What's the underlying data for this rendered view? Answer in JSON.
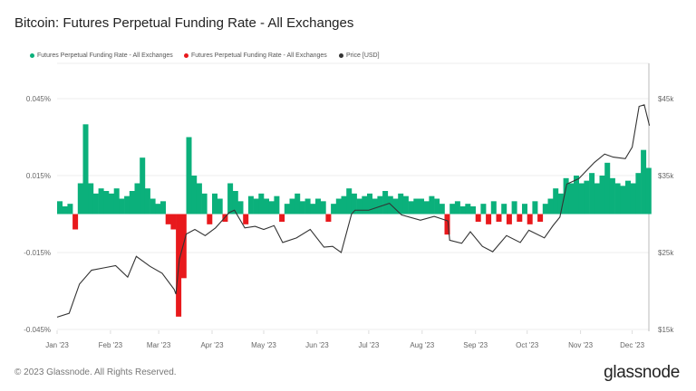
{
  "title": "Bitcoin: Futures Perpetual Funding Rate - All Exchanges",
  "footer": "© 2023 Glassnode. All Rights Reserved.",
  "logo": "glassnode",
  "chart_data": {
    "type": "bar",
    "title": "Bitcoin: Futures Perpetual Funding Rate - All Exchanges",
    "legend_placement": "top",
    "legend": [
      {
        "name": "Futures Perpetual Funding Rate - All Exchanges",
        "color": "#0bb07b"
      },
      {
        "name": "Futures Perpetual Funding Rate - All Exchanges",
        "color": "#e8191c"
      },
      {
        "name": "Price [USD]",
        "color": "#333333"
      }
    ],
    "x_ticks": [
      "Jan '23",
      "Feb '23",
      "Mar '23",
      "Apr '23",
      "May '23",
      "Jun '23",
      "Jul '23",
      "Aug '23",
      "Sep '23",
      "Oct '23",
      "Nov '23",
      "Dec '23"
    ],
    "x_range": [
      "2023-01-01",
      "2023-12-11"
    ],
    "y_left": {
      "ticks": [
        "0.045%",
        "0.015%",
        "-0.015%",
        "-0.045%"
      ],
      "range": [
        -0.045,
        0.045
      ],
      "unit": "%"
    },
    "y_right": {
      "ticks": [
        "$45k",
        "$35k",
        "$25k",
        "$15k"
      ],
      "range": [
        15000,
        45000
      ],
      "scale": "linear"
    },
    "grid": true,
    "funding_rate": [
      [
        "2023-01-01",
        0.005
      ],
      [
        "2023-01-04",
        0.003
      ],
      [
        "2023-01-07",
        0.004
      ],
      [
        "2023-01-10",
        -0.006
      ],
      [
        "2023-01-13",
        0.012
      ],
      [
        "2023-01-16",
        0.035
      ],
      [
        "2023-01-19",
        0.012
      ],
      [
        "2023-01-22",
        0.008
      ],
      [
        "2023-01-25",
        0.01
      ],
      [
        "2023-01-28",
        0.009
      ],
      [
        "2023-01-31",
        0.008
      ],
      [
        "2023-02-03",
        0.01
      ],
      [
        "2023-02-06",
        0.006
      ],
      [
        "2023-02-09",
        0.007
      ],
      [
        "2023-02-12",
        0.009
      ],
      [
        "2023-02-15",
        0.012
      ],
      [
        "2023-02-18",
        0.022
      ],
      [
        "2023-02-21",
        0.01
      ],
      [
        "2023-02-24",
        0.006
      ],
      [
        "2023-02-27",
        0.004
      ],
      [
        "2023-03-02",
        0.005
      ],
      [
        "2023-03-05",
        -0.004
      ],
      [
        "2023-03-08",
        -0.006
      ],
      [
        "2023-03-11",
        -0.04
      ],
      [
        "2023-03-14",
        -0.025
      ],
      [
        "2023-03-17",
        0.03
      ],
      [
        "2023-03-20",
        0.015
      ],
      [
        "2023-03-23",
        0.012
      ],
      [
        "2023-03-26",
        0.008
      ],
      [
        "2023-03-29",
        -0.004
      ],
      [
        "2023-04-01",
        0.008
      ],
      [
        "2023-04-04",
        0.006
      ],
      [
        "2023-04-07",
        -0.003
      ],
      [
        "2023-04-10",
        0.012
      ],
      [
        "2023-04-13",
        0.009
      ],
      [
        "2023-04-16",
        0.005
      ],
      [
        "2023-04-19",
        -0.004
      ],
      [
        "2023-04-22",
        0.007
      ],
      [
        "2023-04-25",
        0.006
      ],
      [
        "2023-04-28",
        0.008
      ],
      [
        "2023-05-01",
        0.006
      ],
      [
        "2023-05-04",
        0.005
      ],
      [
        "2023-05-07",
        0.007
      ],
      [
        "2023-05-10",
        -0.003
      ],
      [
        "2023-05-13",
        0.004
      ],
      [
        "2023-05-16",
        0.006
      ],
      [
        "2023-05-19",
        0.008
      ],
      [
        "2023-05-22",
        0.005
      ],
      [
        "2023-05-25",
        0.006
      ],
      [
        "2023-05-28",
        0.004
      ],
      [
        "2023-05-31",
        0.006
      ],
      [
        "2023-06-03",
        0.005
      ],
      [
        "2023-06-06",
        -0.003
      ],
      [
        "2023-06-09",
        0.004
      ],
      [
        "2023-06-12",
        0.006
      ],
      [
        "2023-06-15",
        0.007
      ],
      [
        "2023-06-18",
        0.01
      ],
      [
        "2023-06-21",
        0.008
      ],
      [
        "2023-06-24",
        0.006
      ],
      [
        "2023-06-27",
        0.007
      ],
      [
        "2023-06-30",
        0.008
      ],
      [
        "2023-07-03",
        0.006
      ],
      [
        "2023-07-06",
        0.007
      ],
      [
        "2023-07-09",
        0.009
      ],
      [
        "2023-07-12",
        0.007
      ],
      [
        "2023-07-15",
        0.006
      ],
      [
        "2023-07-18",
        0.008
      ],
      [
        "2023-07-21",
        0.007
      ],
      [
        "2023-07-24",
        0.005
      ],
      [
        "2023-07-27",
        0.006
      ],
      [
        "2023-07-30",
        0.006
      ],
      [
        "2023-08-02",
        0.005
      ],
      [
        "2023-08-05",
        0.007
      ],
      [
        "2023-08-08",
        0.006
      ],
      [
        "2023-08-11",
        0.004
      ],
      [
        "2023-08-14",
        -0.008
      ],
      [
        "2023-08-17",
        0.004
      ],
      [
        "2023-08-20",
        0.005
      ],
      [
        "2023-08-23",
        0.003
      ],
      [
        "2023-08-26",
        0.004
      ],
      [
        "2023-08-29",
        0.003
      ],
      [
        "2023-09-01",
        -0.003
      ],
      [
        "2023-09-04",
        0.004
      ],
      [
        "2023-09-07",
        -0.004
      ],
      [
        "2023-09-10",
        0.005
      ],
      [
        "2023-09-13",
        -0.003
      ],
      [
        "2023-09-16",
        0.004
      ],
      [
        "2023-09-19",
        -0.004
      ],
      [
        "2023-09-22",
        0.005
      ],
      [
        "2023-09-25",
        -0.003
      ],
      [
        "2023-09-28",
        0.004
      ],
      [
        "2023-10-01",
        -0.004
      ],
      [
        "2023-10-04",
        0.005
      ],
      [
        "2023-10-07",
        -0.003
      ],
      [
        "2023-10-10",
        0.004
      ],
      [
        "2023-10-13",
        0.006
      ],
      [
        "2023-10-16",
        0.01
      ],
      [
        "2023-10-19",
        0.008
      ],
      [
        "2023-10-22",
        0.014
      ],
      [
        "2023-10-25",
        0.012
      ],
      [
        "2023-10-28",
        0.015
      ],
      [
        "2023-10-31",
        0.012
      ],
      [
        "2023-11-03",
        0.013
      ],
      [
        "2023-11-06",
        0.016
      ],
      [
        "2023-11-09",
        0.012
      ],
      [
        "2023-11-12",
        0.015
      ],
      [
        "2023-11-15",
        0.02
      ],
      [
        "2023-11-18",
        0.014
      ],
      [
        "2023-11-21",
        0.012
      ],
      [
        "2023-11-24",
        0.011
      ],
      [
        "2023-11-27",
        0.013
      ],
      [
        "2023-11-30",
        0.012
      ],
      [
        "2023-12-03",
        0.016
      ],
      [
        "2023-12-06",
        0.025
      ],
      [
        "2023-12-09",
        0.018
      ]
    ],
    "price": [
      [
        "2023-01-01",
        16600
      ],
      [
        "2023-01-08",
        17100
      ],
      [
        "2023-01-14",
        20900
      ],
      [
        "2023-01-21",
        22700
      ],
      [
        "2023-01-28",
        23000
      ],
      [
        "2023-02-04",
        23300
      ],
      [
        "2023-02-11",
        21800
      ],
      [
        "2023-02-16",
        24500
      ],
      [
        "2023-02-24",
        23200
      ],
      [
        "2023-03-03",
        22300
      ],
      [
        "2023-03-10",
        20200
      ],
      [
        "2023-03-11",
        19600
      ],
      [
        "2023-03-13",
        24100
      ],
      [
        "2023-03-17",
        27400
      ],
      [
        "2023-03-22",
        28000
      ],
      [
        "2023-03-28",
        27200
      ],
      [
        "2023-04-03",
        28200
      ],
      [
        "2023-04-11",
        30200
      ],
      [
        "2023-04-14",
        30500
      ],
      [
        "2023-04-20",
        28200
      ],
      [
        "2023-04-26",
        28400
      ],
      [
        "2023-05-01",
        28000
      ],
      [
        "2023-05-07",
        28500
      ],
      [
        "2023-05-12",
        26300
      ],
      [
        "2023-05-20",
        26900
      ],
      [
        "2023-05-28",
        28000
      ],
      [
        "2023-06-05",
        25700
      ],
      [
        "2023-06-10",
        25800
      ],
      [
        "2023-06-15",
        25000
      ],
      [
        "2023-06-21",
        30000
      ],
      [
        "2023-06-23",
        30500
      ],
      [
        "2023-07-01",
        30500
      ],
      [
        "2023-07-13",
        31400
      ],
      [
        "2023-07-20",
        29900
      ],
      [
        "2023-07-31",
        29200
      ],
      [
        "2023-08-08",
        29700
      ],
      [
        "2023-08-16",
        29100
      ],
      [
        "2023-08-17",
        26600
      ],
      [
        "2023-08-24",
        26200
      ],
      [
        "2023-08-29",
        27700
      ],
      [
        "2023-09-05",
        25800
      ],
      [
        "2023-09-11",
        25100
      ],
      [
        "2023-09-19",
        27200
      ],
      [
        "2023-09-27",
        26300
      ],
      [
        "2023-10-02",
        27900
      ],
      [
        "2023-10-11",
        26900
      ],
      [
        "2023-10-16",
        28500
      ],
      [
        "2023-10-20",
        29600
      ],
      [
        "2023-10-24",
        33900
      ],
      [
        "2023-10-31",
        34600
      ],
      [
        "2023-11-09",
        36700
      ],
      [
        "2023-11-15",
        37800
      ],
      [
        "2023-11-20",
        37400
      ],
      [
        "2023-11-27",
        37200
      ],
      [
        "2023-12-01",
        38700
      ],
      [
        "2023-12-05",
        44000
      ],
      [
        "2023-12-08",
        44200
      ],
      [
        "2023-12-11",
        41500
      ]
    ]
  }
}
